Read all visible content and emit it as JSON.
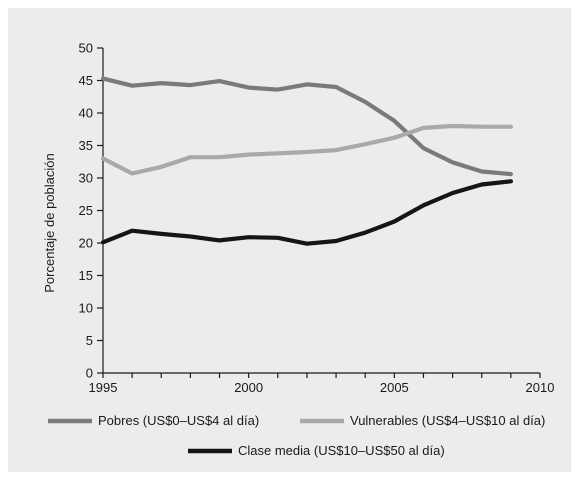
{
  "chart_data": {
    "type": "line",
    "title": "",
    "xlabel": "",
    "ylabel": "Porcentaje de población",
    "xlim": [
      1995,
      2010
    ],
    "ylim": [
      0,
      50
    ],
    "xticks": [
      1995,
      2000,
      2005,
      2010
    ],
    "yticks": [
      0,
      5,
      10,
      15,
      20,
      25,
      30,
      35,
      40,
      45,
      50
    ],
    "grid": false,
    "legend_position": "bottom",
    "x": [
      1995,
      1996,
      1997,
      1998,
      1999,
      2000,
      2001,
      2002,
      2003,
      2004,
      2005,
      2006,
      2007,
      2008,
      2009
    ],
    "series": [
      {
        "name": "Pobres (US$0–US$4 al día)",
        "color": "#7a7a7a",
        "values": [
          45.3,
          44.2,
          44.6,
          44.3,
          44.9,
          43.9,
          43.6,
          44.4,
          44.0,
          41.7,
          38.8,
          34.6,
          32.4,
          31.0,
          30.6
        ]
      },
      {
        "name": "Vulnerables (US$4–US$10 al día)",
        "color": "#a9a9a9",
        "values": [
          33.0,
          30.7,
          31.7,
          33.2,
          33.2,
          33.6,
          33.8,
          34.0,
          34.3,
          35.2,
          36.2,
          37.7,
          38.0,
          37.9,
          37.9
        ]
      },
      {
        "name": "Clase media (US$10–US$50 al día)",
        "color": "#151515",
        "values": [
          20.1,
          21.9,
          21.4,
          21.0,
          20.4,
          20.9,
          20.8,
          19.9,
          20.3,
          21.6,
          23.3,
          25.8,
          27.7,
          29.0,
          29.5
        ]
      }
    ]
  }
}
